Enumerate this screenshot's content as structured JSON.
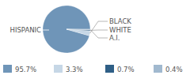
{
  "chart_data": {
    "type": "pie",
    "categories": [
      "HISPANIC",
      "BLACK",
      "WHITE",
      "A.I."
    ],
    "values": [
      95.7,
      3.3,
      0.7,
      0.4
    ],
    "value_labels": [
      "95.7%",
      "3.3%",
      "0.7%",
      "0.4%"
    ],
    "colors": [
      "#6f95b8",
      "#c6d7e6",
      "#2f5f86",
      "#a1b9cf"
    ]
  }
}
